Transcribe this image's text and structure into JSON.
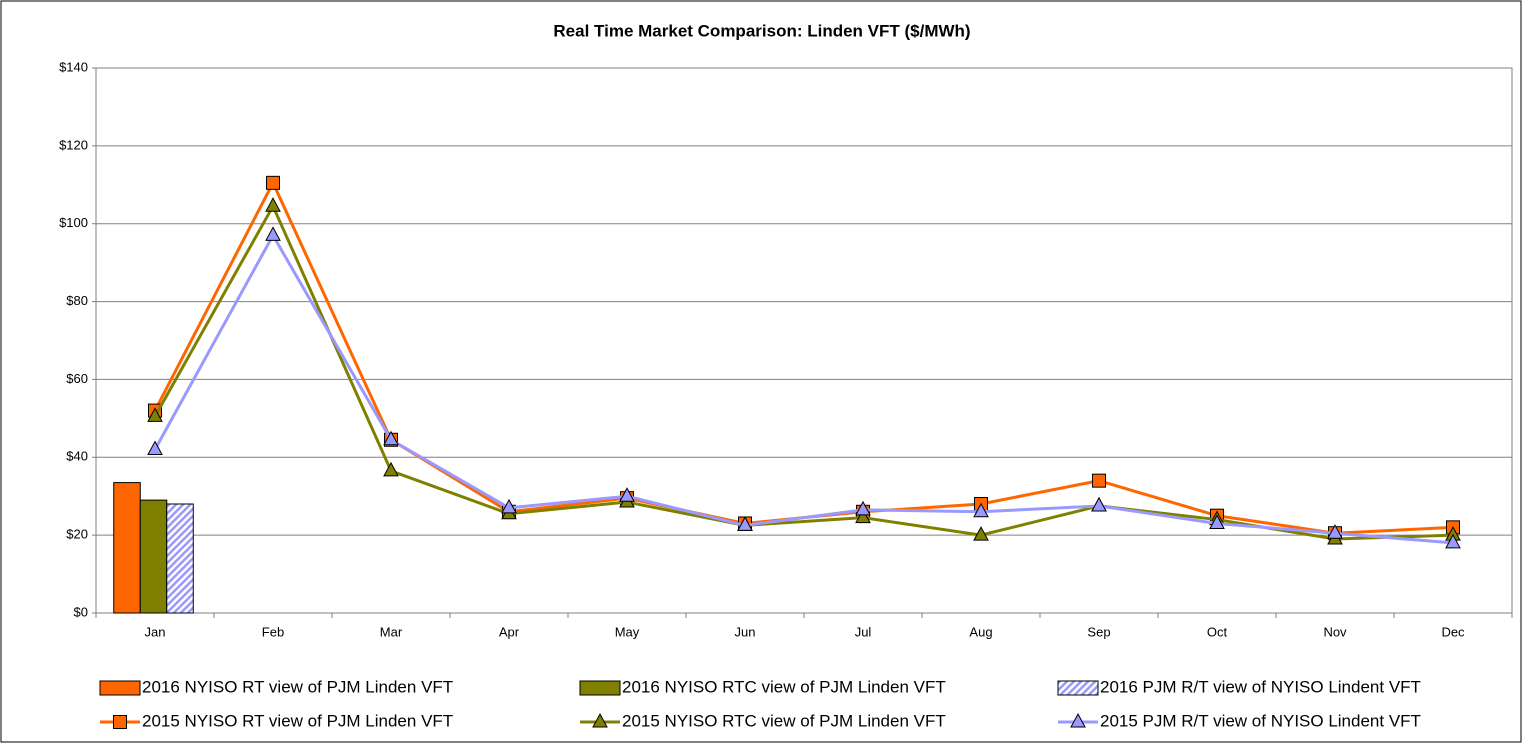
{
  "chart_data": {
    "type": "combo",
    "title": "Real Time Market Comparison: Linden VFT ($/MWh)",
    "categories": [
      "Jan",
      "Feb",
      "Mar",
      "Apr",
      "May",
      "Jun",
      "Jul",
      "Aug",
      "Sep",
      "Oct",
      "Nov",
      "Dec"
    ],
    "ylim": [
      0,
      140
    ],
    "yticks": [
      {
        "value": 0,
        "label": "$0"
      },
      {
        "value": 20,
        "label": "$20"
      },
      {
        "value": 40,
        "label": "$40"
      },
      {
        "value": 60,
        "label": "$60"
      },
      {
        "value": 80,
        "label": "$80"
      },
      {
        "value": 100,
        "label": "$100"
      },
      {
        "value": 120,
        "label": "$120"
      },
      {
        "value": 140,
        "label": "$140"
      }
    ],
    "grid": true,
    "series": [
      {
        "name": "2016 NYISO RT view of PJM Linden VFT",
        "type": "bar",
        "color": "#ff6600",
        "values": [
          33.5,
          null,
          null,
          null,
          null,
          null,
          null,
          null,
          null,
          null,
          null,
          null
        ]
      },
      {
        "name": "2016 NYISO RTC view of PJM Linden VFT",
        "type": "bar",
        "color": "#808000",
        "values": [
          29,
          null,
          null,
          null,
          null,
          null,
          null,
          null,
          null,
          null,
          null,
          null
        ]
      },
      {
        "name": "2016 PJM R/T view of NYISO Lindent VFT",
        "type": "bar",
        "color": "#9999ff",
        "pattern": "hatch",
        "values": [
          28,
          null,
          null,
          null,
          null,
          null,
          null,
          null,
          null,
          null,
          null,
          null
        ]
      },
      {
        "name": "2015 NYISO RT view of PJM Linden VFT",
        "type": "line",
        "color": "#ff6600",
        "marker": "square",
        "values": [
          52,
          110.5,
          44.5,
          26,
          29.5,
          23,
          26,
          28,
          34,
          25,
          20.5,
          22
        ]
      },
      {
        "name": "2015 NYISO RTC view of PJM Linden VFT",
        "type": "line",
        "color": "#808000",
        "marker": "triangle",
        "values": [
          50.5,
          104.5,
          36.5,
          25.5,
          28.5,
          22.5,
          24.5,
          20,
          27.5,
          24,
          19,
          20
        ]
      },
      {
        "name": "2015 PJM R/T view of NYISO Lindent VFT",
        "type": "line",
        "color": "#9999ff",
        "marker": "triangle",
        "values": [
          42,
          97,
          44.5,
          27,
          30,
          22.5,
          26.5,
          26,
          27.5,
          23,
          20.5,
          18
        ]
      }
    ]
  }
}
